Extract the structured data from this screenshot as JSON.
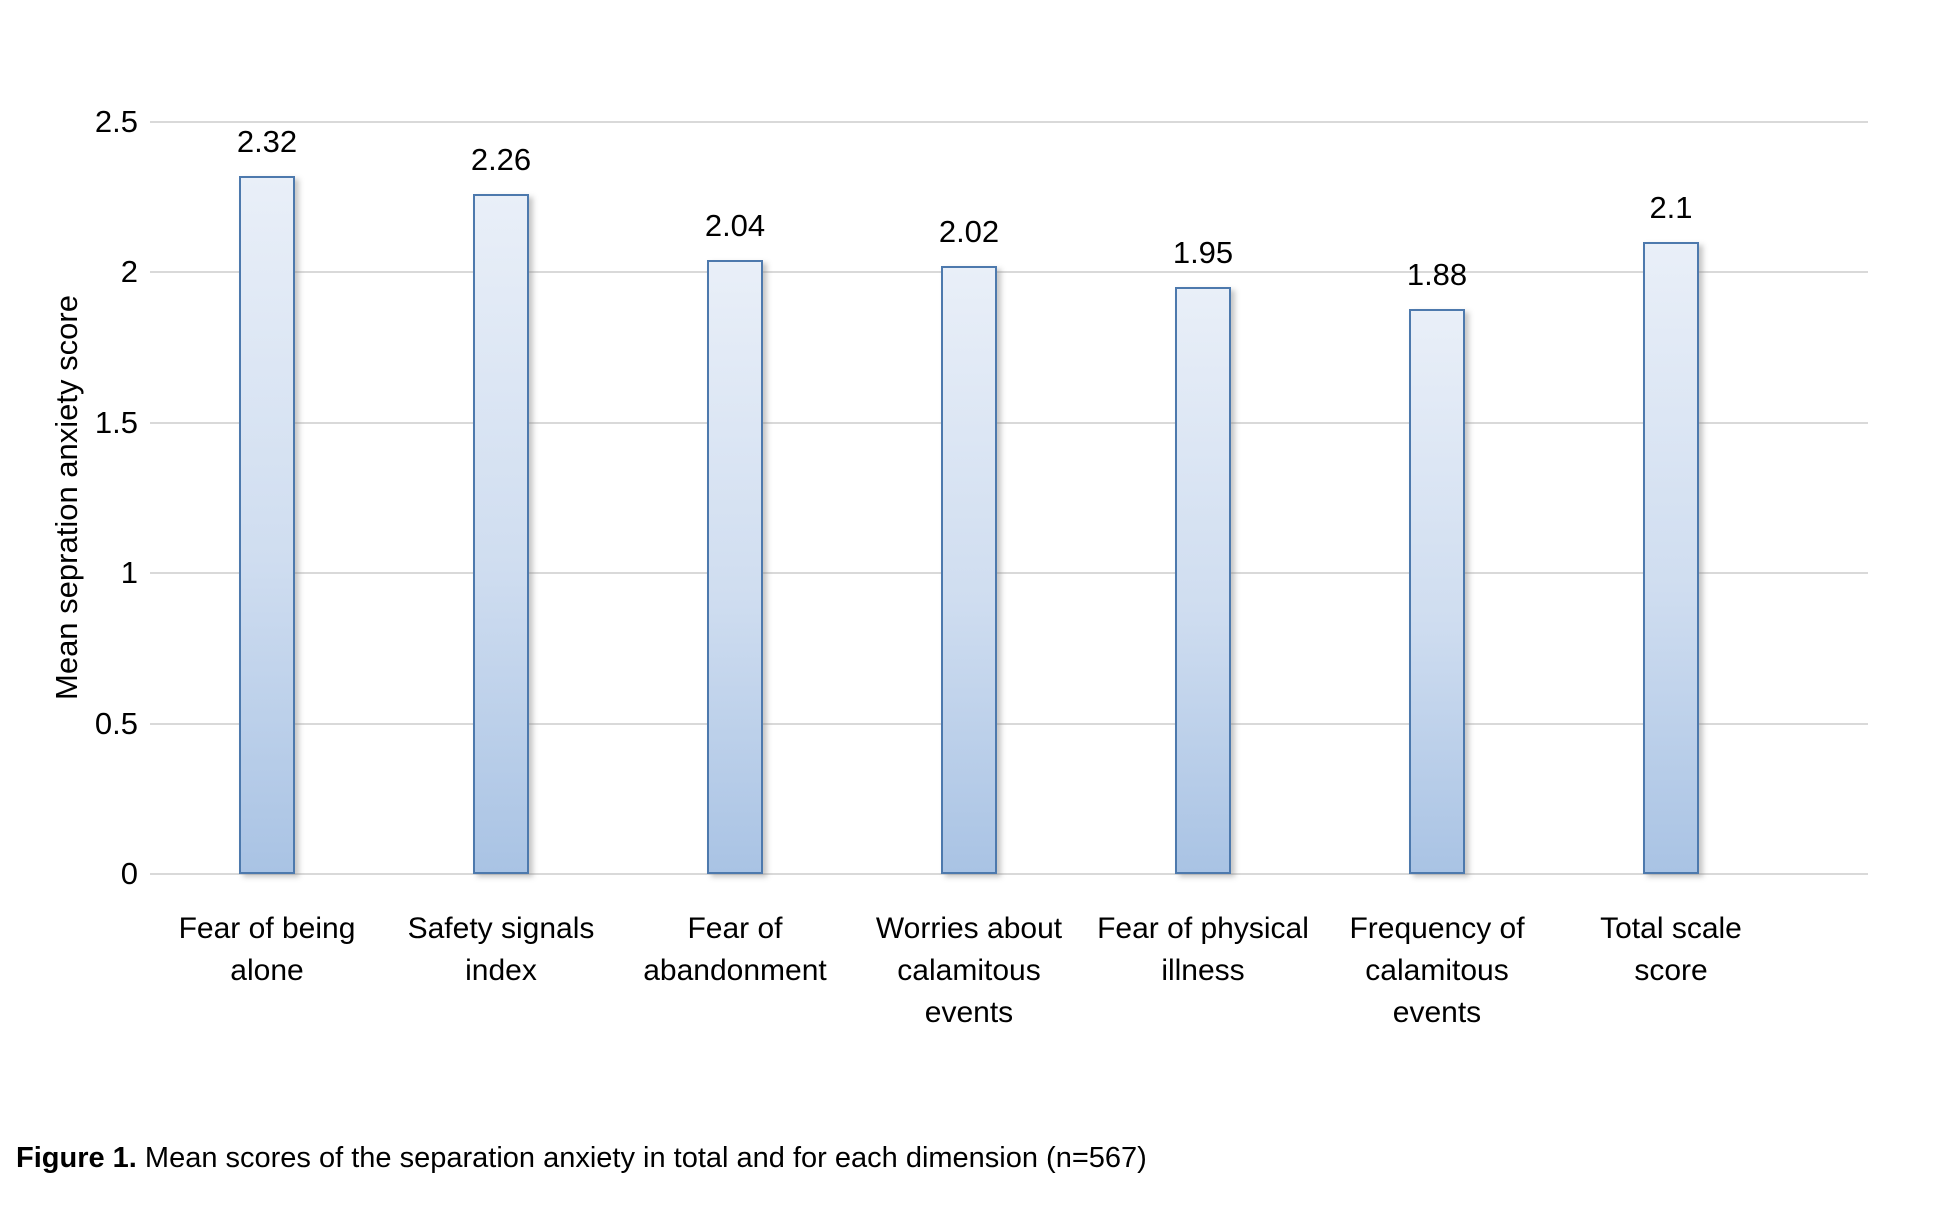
{
  "figure": {
    "caption_prefix": "Figure 1.",
    "caption_text": " Mean scores of the separation anxiety in total and for each dimension (n=567)"
  },
  "chart_data": {
    "type": "bar",
    "title": "",
    "categories": [
      "Fear of being alone",
      "Safety signals index",
      "Fear of abandonment",
      "Worries about calamitous events",
      "Fear of physical illness",
      "Frequency of calamitous events",
      "Total scale score"
    ],
    "values": [
      2.32,
      2.26,
      2.04,
      2.02,
      1.95,
      1.88,
      2.1
    ],
    "value_labels": [
      "2.32",
      "2.26",
      "2.04",
      "2.02",
      "1.95",
      "1.88",
      "2.1"
    ],
    "xlabel": "",
    "ylabel": "Mean sepration anxiety score",
    "ylim": [
      0,
      2.5
    ],
    "yticks": [
      0,
      0.5,
      1,
      1.5,
      2,
      2.5
    ],
    "ytick_labels": [
      "0",
      "0.5",
      "1",
      "1.5",
      "2",
      "2.5"
    ],
    "grid": true,
    "legend": false,
    "colors": {
      "bar_fill_top": "#e9eff8",
      "bar_fill_mid": "#cfddf0",
      "bar_fill_bottom": "#a9c3e4",
      "bar_border": "#4d79ad",
      "gridline": "#d9d9d9",
      "text": "#000000"
    }
  }
}
